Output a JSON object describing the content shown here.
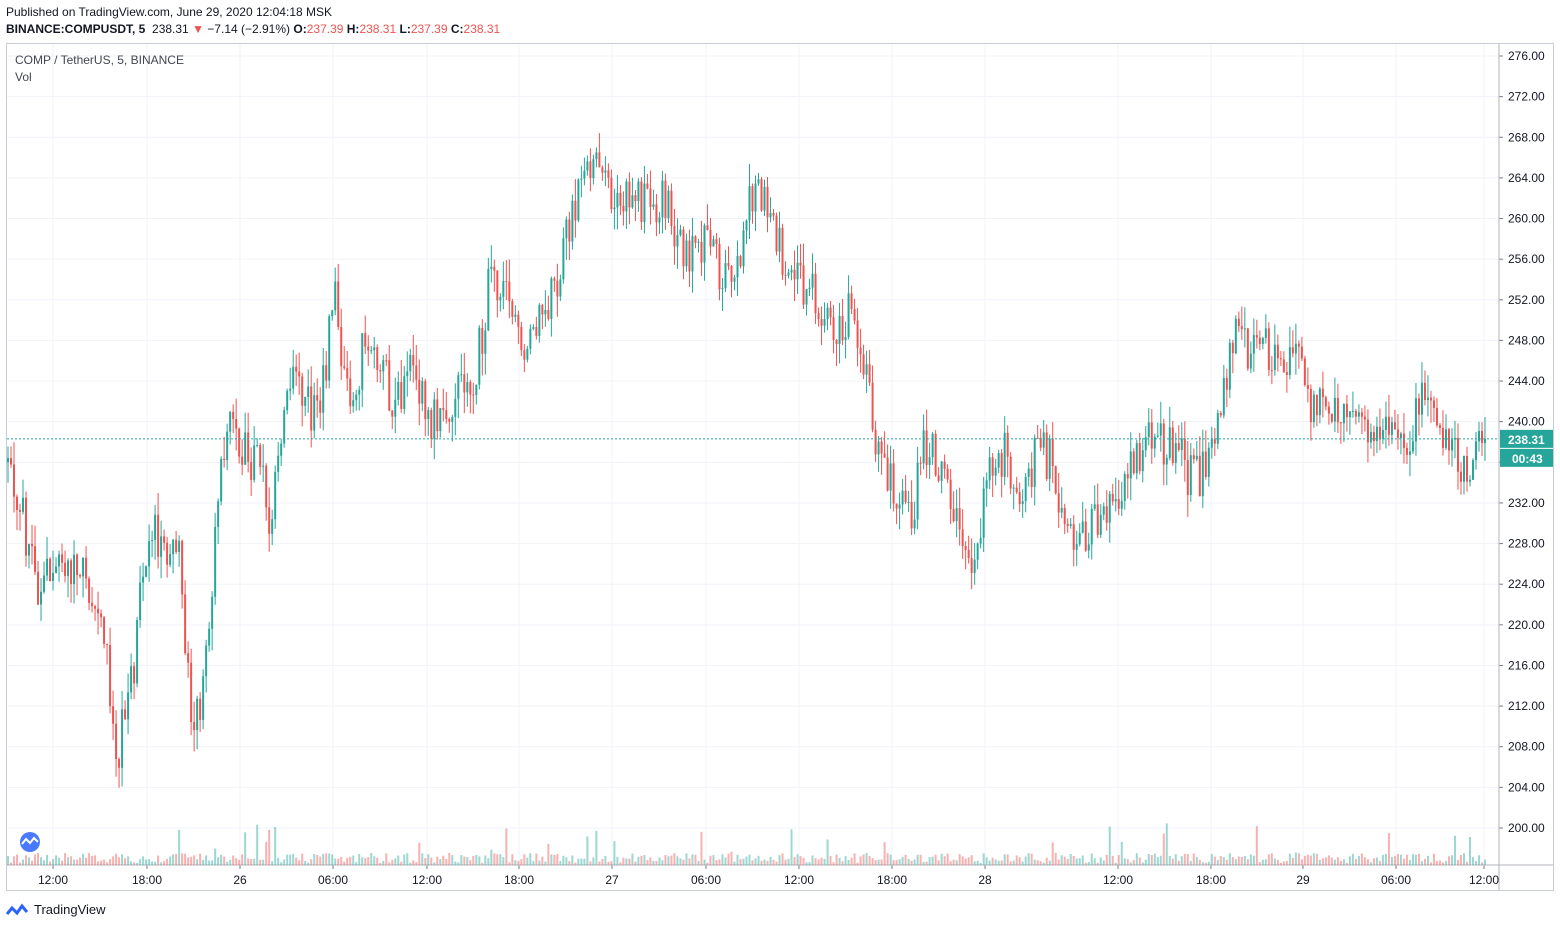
{
  "header": {
    "published": "Published on TradingView.com, June 29, 2020 12:04:18 MSK",
    "ticker": "BINANCE:COMPUSDT, 5",
    "last": "238.31",
    "arrow": "▼",
    "change": "−7.14 (−2.91%)",
    "o_label": "O:",
    "o_value": "237.39",
    "h_label": "H:",
    "h_value": "238.31",
    "l_label": "L:",
    "l_value": "237.39",
    "c_label": "C:",
    "c_value": "238.31"
  },
  "legend": {
    "symbol": "COMP / TetherUS, 5, BINANCE",
    "volume": "Vol"
  },
  "price_label": "238.31",
  "countdown_label": "00:43",
  "footer": {
    "brand": "TradingView"
  },
  "colors": {
    "up": "#26a69a",
    "down": "#ef5350",
    "grid": "#f0f3fa",
    "axis_text": "#131722",
    "price_line": "#26a69a"
  },
  "chart_data": {
    "type": "candlestick",
    "title": "COMP / TetherUS, 5, BINANCE",
    "y_axis_ticks": [
      "276.00",
      "272.00",
      "268.00",
      "264.00",
      "260.00",
      "256.00",
      "252.00",
      "248.00",
      "244.00",
      "240.00",
      "236.00",
      "232.00",
      "228.00",
      "224.00",
      "220.00",
      "216.00",
      "212.00",
      "208.00",
      "204.00",
      "200.00"
    ],
    "x_axis_ticks": [
      "12:00",
      "18:00",
      "26",
      "06:00",
      "12:00",
      "18:00",
      "27",
      "06:00",
      "12:00",
      "18:00",
      "28",
      "12:00",
      "18:00",
      "29",
      "06:00",
      "12:00"
    ],
    "ylim": [
      196,
      277
    ],
    "last_price": 238.31,
    "path": [
      {
        "t": 0,
        "p": 236
      },
      {
        "t": 2,
        "p": 224
      },
      {
        "t": 4,
        "p": 226
      },
      {
        "t": 6,
        "p": 222
      },
      {
        "t": 7,
        "p": 207
      },
      {
        "t": 8,
        "p": 215
      },
      {
        "t": 9,
        "p": 230
      },
      {
        "t": 11,
        "p": 226
      },
      {
        "t": 12,
        "p": 208
      },
      {
        "t": 13,
        "p": 222
      },
      {
        "t": 14,
        "p": 240
      },
      {
        "t": 16,
        "p": 236
      },
      {
        "t": 17,
        "p": 230
      },
      {
        "t": 18,
        "p": 245
      },
      {
        "t": 20,
        "p": 240
      },
      {
        "t": 21,
        "p": 252
      },
      {
        "t": 22,
        "p": 241
      },
      {
        "t": 23,
        "p": 248
      },
      {
        "t": 25,
        "p": 242
      },
      {
        "t": 26,
        "p": 246
      },
      {
        "t": 27,
        "p": 240
      },
      {
        "t": 28,
        "p": 242
      },
      {
        "t": 30,
        "p": 244
      },
      {
        "t": 31,
        "p": 254
      },
      {
        "t": 32,
        "p": 252
      },
      {
        "t": 33,
        "p": 248
      },
      {
        "t": 35,
        "p": 253
      },
      {
        "t": 36,
        "p": 258
      },
      {
        "t": 37,
        "p": 266
      },
      {
        "t": 38,
        "p": 264
      },
      {
        "t": 40,
        "p": 262
      },
      {
        "t": 42,
        "p": 262
      },
      {
        "t": 44,
        "p": 256
      },
      {
        "t": 45,
        "p": 258
      },
      {
        "t": 46,
        "p": 254
      },
      {
        "t": 47,
        "p": 256
      },
      {
        "t": 48,
        "p": 263
      },
      {
        "t": 49,
        "p": 260
      },
      {
        "t": 50,
        "p": 256
      },
      {
        "t": 51,
        "p": 254
      },
      {
        "t": 52,
        "p": 253
      },
      {
        "t": 53,
        "p": 249
      },
      {
        "t": 54,
        "p": 251
      },
      {
        "t": 55,
        "p": 246
      },
      {
        "t": 56,
        "p": 237
      },
      {
        "t": 57,
        "p": 234
      },
      {
        "t": 58,
        "p": 230
      },
      {
        "t": 59,
        "p": 238
      },
      {
        "t": 60,
        "p": 236
      },
      {
        "t": 61,
        "p": 230
      },
      {
        "t": 62,
        "p": 226
      },
      {
        "t": 63,
        "p": 235
      },
      {
        "t": 64,
        "p": 237
      },
      {
        "t": 65,
        "p": 233
      },
      {
        "t": 66,
        "p": 236
      },
      {
        "t": 67,
        "p": 237
      },
      {
        "t": 68,
        "p": 230
      },
      {
        "t": 69,
        "p": 229
      },
      {
        "t": 70,
        "p": 231
      },
      {
        "t": 71,
        "p": 233
      },
      {
        "t": 72,
        "p": 235
      },
      {
        "t": 73,
        "p": 238
      },
      {
        "t": 74,
        "p": 238
      },
      {
        "t": 75,
        "p": 237
      },
      {
        "t": 76,
        "p": 235
      },
      {
        "t": 77,
        "p": 235
      },
      {
        "t": 78,
        "p": 242
      },
      {
        "t": 79,
        "p": 248
      },
      {
        "t": 80,
        "p": 247
      },
      {
        "t": 81,
        "p": 247
      },
      {
        "t": 82,
        "p": 245
      },
      {
        "t": 83,
        "p": 246
      },
      {
        "t": 84,
        "p": 241
      },
      {
        "t": 85,
        "p": 242
      },
      {
        "t": 86,
        "p": 241
      },
      {
        "t": 87,
        "p": 240
      },
      {
        "t": 88,
        "p": 239
      },
      {
        "t": 89,
        "p": 240
      },
      {
        "t": 90,
        "p": 238
      },
      {
        "t": 91,
        "p": 243
      },
      {
        "t": 92,
        "p": 241
      },
      {
        "t": 93,
        "p": 236
      },
      {
        "t": 94,
        "p": 235
      },
      {
        "t": 95,
        "p": 238
      }
    ]
  }
}
